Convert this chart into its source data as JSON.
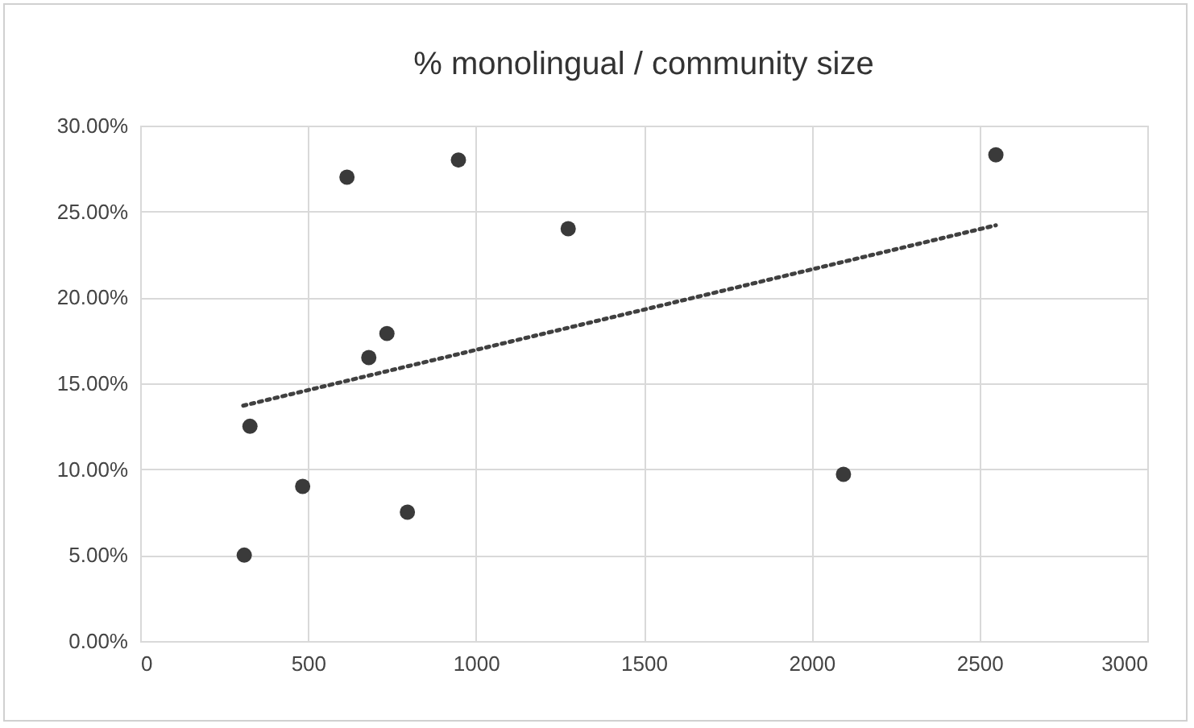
{
  "chart_data": {
    "type": "scatter",
    "title": "% monolingual / community size",
    "series": [
      {
        "type": "scatter",
        "color": "#3a3a3a",
        "marker": "circle",
        "x": [
          310,
          327,
          484,
          616,
          681,
          735,
          796,
          948,
          1275,
          2095,
          2549
        ],
        "values": [
          5.0,
          12.5,
          9.0,
          27.0,
          16.5,
          17.9,
          7.5,
          28.0,
          24.0,
          9.7,
          28.3
        ]
      },
      {
        "type": "line",
        "color": "#404040",
        "line_style": "dotted",
        "marker": "none",
        "x": [
          307,
          2549
        ],
        "values": [
          13.7,
          24.2
        ]
      }
    ],
    "xlim": [
      0,
      3000
    ],
    "xticks": [
      0,
      500,
      1000,
      1500,
      2000,
      2500,
      3000
    ],
    "ylim": [
      0,
      30
    ],
    "yticks": [
      {
        "value": 0,
        "label": "0.00%"
      },
      {
        "value": 5,
        "label": "5.00%"
      },
      {
        "value": 10,
        "label": "10.00%"
      },
      {
        "value": 15,
        "label": "15.00%"
      },
      {
        "value": 20,
        "label": "20.00%"
      },
      {
        "value": 25,
        "label": "25.00%"
      },
      {
        "value": 30,
        "label": "30.00%"
      }
    ],
    "grid": true
  }
}
